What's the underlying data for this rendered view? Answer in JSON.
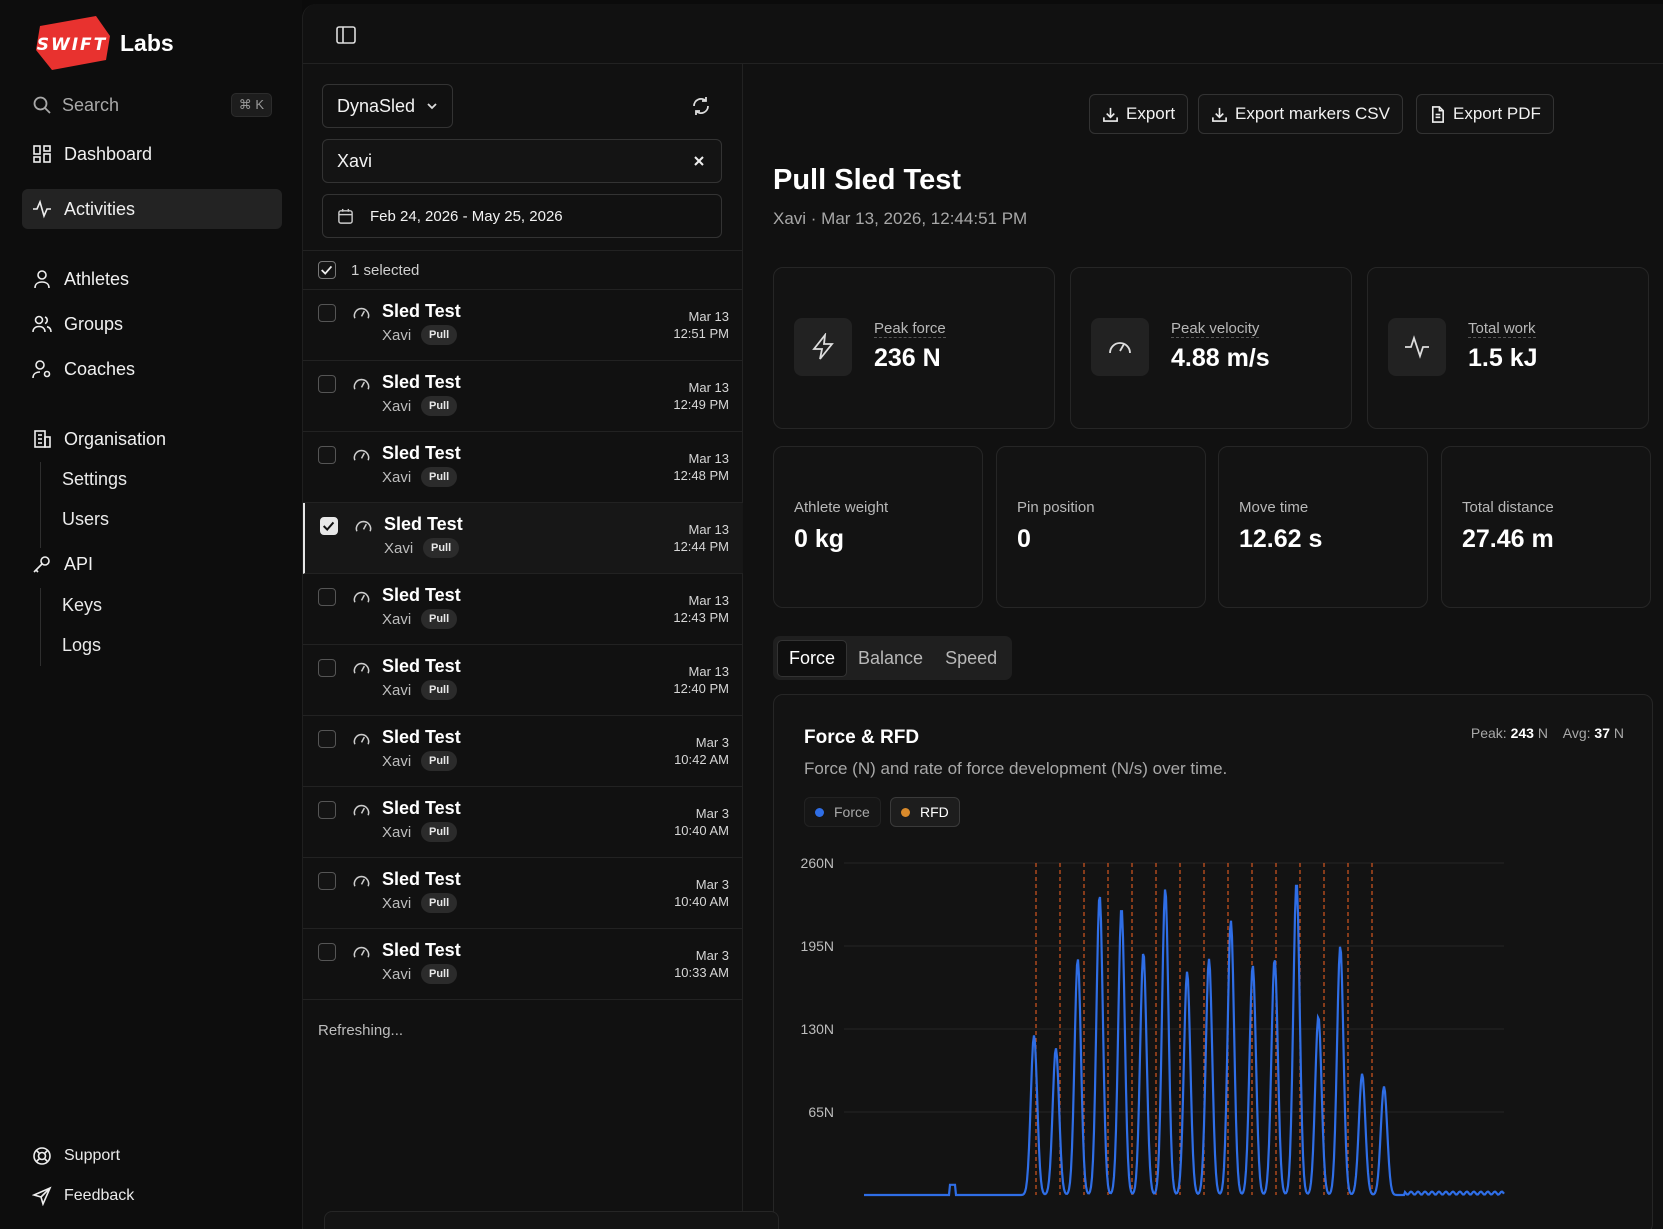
{
  "brand": {
    "logo_text": "SWIFT",
    "name": "Labs",
    "color": "#e8322f"
  },
  "search": {
    "label": "Search",
    "shortcut": "⌘ K"
  },
  "nav": {
    "dashboard": "Dashboard",
    "activities": "Activities",
    "athletes": "Athletes",
    "groups": "Groups",
    "coaches": "Coaches",
    "organisation": "Organisation",
    "settings": "Settings",
    "users": "Users",
    "api": "API",
    "keys": "Keys",
    "logs": "Logs",
    "support": "Support",
    "feedback": "Feedback"
  },
  "filters": {
    "device": "DynaSled",
    "athlete_value": "Xavi",
    "date_range": "Feb 24, 2026 - May 25, 2026",
    "selected_count": "1 selected"
  },
  "activities": [
    {
      "title": "Sled Test",
      "athlete": "Xavi",
      "tag": "Pull",
      "date": "Mar 13",
      "time": "12:51 PM",
      "checked": false
    },
    {
      "title": "Sled Test",
      "athlete": "Xavi",
      "tag": "Pull",
      "date": "Mar 13",
      "time": "12:49 PM",
      "checked": false
    },
    {
      "title": "Sled Test",
      "athlete": "Xavi",
      "tag": "Pull",
      "date": "Mar 13",
      "time": "12:48 PM",
      "checked": false
    },
    {
      "title": "Sled Test",
      "athlete": "Xavi",
      "tag": "Pull",
      "date": "Mar 13",
      "time": "12:44 PM",
      "checked": true
    },
    {
      "title": "Sled Test",
      "athlete": "Xavi",
      "tag": "Pull",
      "date": "Mar 13",
      "time": "12:43 PM",
      "checked": false
    },
    {
      "title": "Sled Test",
      "athlete": "Xavi",
      "tag": "Pull",
      "date": "Mar 13",
      "time": "12:40 PM",
      "checked": false
    },
    {
      "title": "Sled Test",
      "athlete": "Xavi",
      "tag": "Pull",
      "date": "Mar 3",
      "time": "10:42 AM",
      "checked": false
    },
    {
      "title": "Sled Test",
      "athlete": "Xavi",
      "tag": "Pull",
      "date": "Mar 3",
      "time": "10:40 AM",
      "checked": false
    },
    {
      "title": "Sled Test",
      "athlete": "Xavi",
      "tag": "Pull",
      "date": "Mar 3",
      "time": "10:40 AM",
      "checked": false
    },
    {
      "title": "Sled Test",
      "athlete": "Xavi",
      "tag": "Pull",
      "date": "Mar 3",
      "time": "10:33 AM",
      "checked": false
    }
  ],
  "list_status": "Refreshing...",
  "toolbar": {
    "export": "Export",
    "export_markers": "Export markers CSV",
    "export_pdf": "Export PDF"
  },
  "detail": {
    "title": "Pull Sled Test",
    "subtitle": "Xavi · Mar 13, 2026, 12:44:51 PM",
    "metrics": [
      {
        "label": "Peak force",
        "value": "236 N",
        "icon": "lightning-icon"
      },
      {
        "label": "Peak velocity",
        "value": "4.88 m/s",
        "icon": "gauge-icon"
      },
      {
        "label": "Total work",
        "value": "1.5 kJ",
        "icon": "activity-icon"
      }
    ],
    "stats": [
      {
        "label": "Athlete weight",
        "value": "0 kg"
      },
      {
        "label": "Pin position",
        "value": "0"
      },
      {
        "label": "Move time",
        "value": "12.62 s"
      },
      {
        "label": "Total distance",
        "value": "27.46 m"
      }
    ],
    "tabs": [
      "Force",
      "Balance",
      "Speed"
    ],
    "active_tab": "Force"
  },
  "chart": {
    "title": "Force & RFD",
    "description": "Force (N) and rate of force development (N/s) over time.",
    "peak_label": "Peak:",
    "peak_value": "243",
    "avg_label": "Avg:",
    "avg_value": "37",
    "unit": "N",
    "legend": [
      {
        "name": "Force",
        "color": "#2f6ee6",
        "enabled": false
      },
      {
        "name": "RFD",
        "color": "#d98a2b",
        "enabled": true
      }
    ],
    "y_ticks": [
      "260N",
      "195N",
      "130N",
      "65N"
    ]
  },
  "chart_data": {
    "type": "line",
    "title": "Force & RFD",
    "xlabel": "",
    "ylabel": "",
    "ylim": [
      0,
      260
    ],
    "y_ticks": [
      65,
      130,
      195,
      260
    ],
    "grid": true,
    "legend": "top-left",
    "series": [
      {
        "name": "Force",
        "color": "#2f6ee6",
        "peaks": [
          125,
          115,
          185,
          235,
          225,
          190,
          240,
          175,
          185,
          215,
          180,
          185,
          245,
          140,
          195,
          95,
          85
        ]
      }
    ],
    "rfd_marker_count": 15
  }
}
